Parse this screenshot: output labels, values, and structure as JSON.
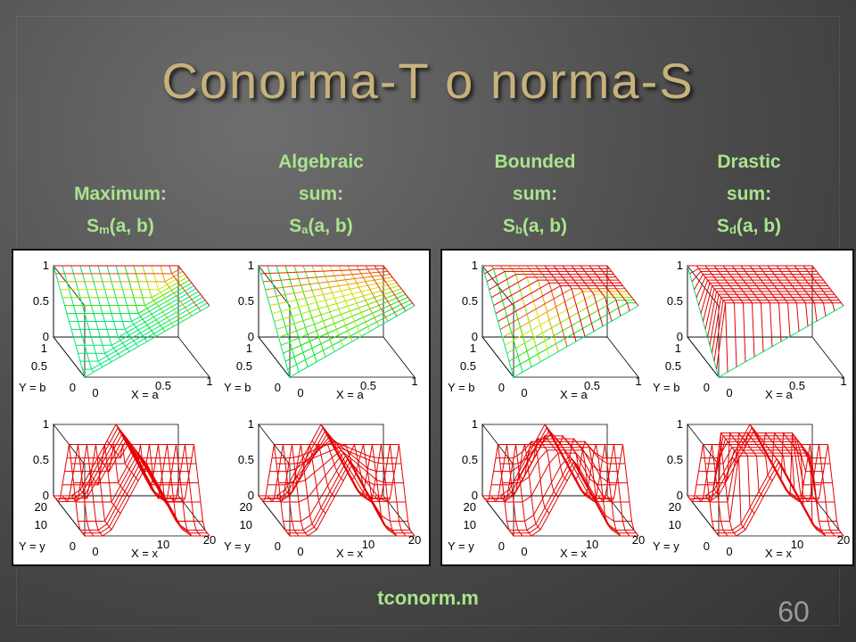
{
  "title": "Conorma-T o norma-S",
  "columns": [
    {
      "lines": [
        "Maximum:"
      ],
      "symbol": "S",
      "subscript": "m",
      "args": "(a, b)"
    },
    {
      "lines": [
        "Algebraic",
        "sum:"
      ],
      "symbol": "S",
      "subscript": "a",
      "args": "(a, b)"
    },
    {
      "lines": [
        "Bounded",
        "sum:"
      ],
      "symbol": "S",
      "subscript": "b",
      "args": "(a, b)"
    },
    {
      "lines": [
        "Drastic",
        "sum:"
      ],
      "symbol": "S",
      "subscript": "d",
      "args": "(a, b)"
    }
  ],
  "plots": {
    "top": {
      "zticks": [
        1,
        0.5,
        0
      ],
      "yticks": [
        1,
        0.5,
        0
      ],
      "xticks": [
        0,
        0.5,
        1
      ],
      "ylabel": "Y = b",
      "xlabel": "X = a"
    },
    "bottom": {
      "zticks": [
        1,
        0.5,
        0
      ],
      "yticks": [
        20,
        10,
        0
      ],
      "xticks": [
        0,
        10,
        20
      ],
      "ylabel": "Y = y",
      "xlabel": "X = x"
    }
  },
  "footer": "tconorm.m",
  "page_number": 60
}
